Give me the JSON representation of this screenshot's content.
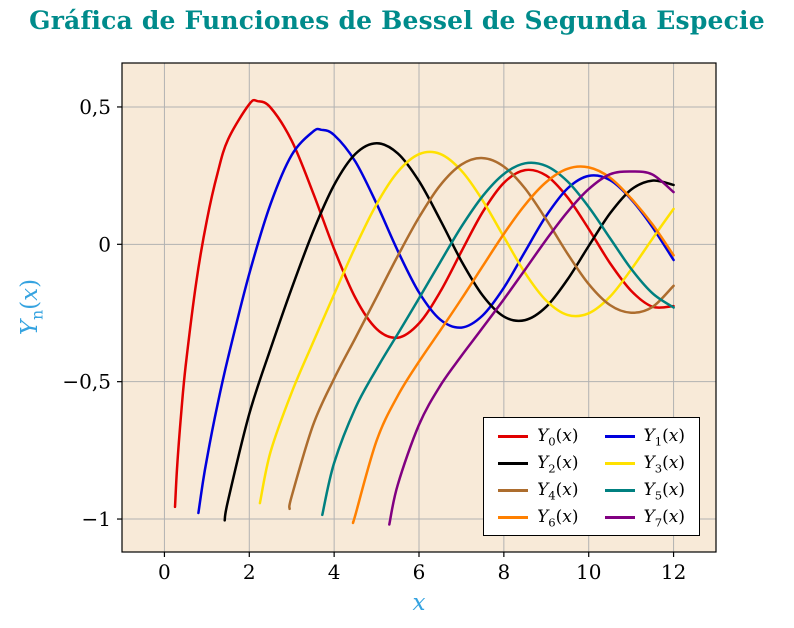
{
  "style": {
    "title_color": "#008b8b",
    "axis_label_color": "#35a3e0",
    "plot_bg": "#f8ead8",
    "grid_color": "#b2b2b2",
    "frame_color": "#000000",
    "tick_label_color": "#000000"
  },
  "chart_data": {
    "type": "line",
    "title": "Gráfica de Funciones de Bessel de Segunda Especie",
    "xlabel": "x",
    "ylabel": "Y_n(x)",
    "ylabel_parts": {
      "base": "Y",
      "sub": "n",
      "open": "(",
      "var": "x",
      "close": ")"
    },
    "xlim": [
      -1.0,
      13.0
    ],
    "ylim": [
      -1.12,
      0.66
    ],
    "xticks": {
      "values": [
        0,
        2,
        4,
        6,
        8,
        10,
        12
      ],
      "labels": [
        "0",
        "2",
        "4",
        "6",
        "8",
        "10",
        "12"
      ]
    },
    "yticks": {
      "values": [
        -1,
        -0.5,
        0,
        0.5
      ],
      "labels": [
        "−1",
        "−0,5",
        "0",
        "0,5"
      ]
    },
    "grid": "on",
    "legend_position": "bottom-right",
    "series": [
      {
        "id": "Y0",
        "name": "Y0(x)",
        "label": {
          "base": "Y",
          "sub": "0",
          "open": "(",
          "var": "x",
          "close": ")"
        },
        "color": "#e10000",
        "points": [
          [
            0.25,
            -0.956
          ],
          [
            0.3,
            -0.807
          ],
          [
            0.4,
            -0.606
          ],
          [
            0.5,
            -0.444
          ],
          [
            0.75,
            -0.137
          ],
          [
            1,
            0.088
          ],
          [
            1.25,
            0.258
          ],
          [
            1.5,
            0.382
          ],
          [
            2,
            0.51
          ],
          [
            2.2,
            0.521
          ],
          [
            2.5,
            0.498
          ],
          [
            3,
            0.377
          ],
          [
            3.5,
            0.189
          ],
          [
            4,
            -0.017
          ],
          [
            4.5,
            -0.195
          ],
          [
            5,
            -0.308
          ],
          [
            5.5,
            -0.34
          ],
          [
            6,
            -0.288
          ],
          [
            6.5,
            -0.173
          ],
          [
            7,
            -0.026
          ],
          [
            7.5,
            0.117
          ],
          [
            8,
            0.224
          ],
          [
            8.5,
            0.27
          ],
          [
            9,
            0.25
          ],
          [
            9.5,
            0.171
          ],
          [
            10,
            0.056
          ],
          [
            10.5,
            -0.068
          ],
          [
            11,
            -0.169
          ],
          [
            11.5,
            -0.227
          ],
          [
            12,
            -0.225
          ]
        ]
      },
      {
        "id": "Y1",
        "name": "Y1(x)",
        "label": {
          "base": "Y",
          "sub": "1",
          "open": "(",
          "var": "x",
          "close": ")"
        },
        "color": "#0000dd",
        "points": [
          [
            0.8,
            -0.978
          ],
          [
            0.9,
            -0.873
          ],
          [
            1,
            -0.781
          ],
          [
            1.25,
            -0.584
          ],
          [
            1.5,
            -0.412
          ],
          [
            2,
            -0.107
          ],
          [
            2.5,
            0.146
          ],
          [
            3,
            0.325
          ],
          [
            3.5,
            0.41
          ],
          [
            3.7,
            0.417
          ],
          [
            4,
            0.398
          ],
          [
            4.5,
            0.301
          ],
          [
            5,
            0.148
          ],
          [
            5.5,
            -0.024
          ],
          [
            6,
            -0.175
          ],
          [
            6.5,
            -0.274
          ],
          [
            7,
            -0.303
          ],
          [
            7.5,
            -0.259
          ],
          [
            8,
            -0.158
          ],
          [
            8.5,
            -0.026
          ],
          [
            9,
            0.104
          ],
          [
            9.5,
            0.203
          ],
          [
            10,
            0.249
          ],
          [
            10.5,
            0.234
          ],
          [
            11,
            0.164
          ],
          [
            11.5,
            0.063
          ],
          [
            12,
            -0.057
          ]
        ]
      },
      {
        "id": "Y2",
        "name": "Y2(x)",
        "label": {
          "base": "Y",
          "sub": "2",
          "open": "(",
          "var": "x",
          "close": ")"
        },
        "color": "#000000",
        "points": [
          [
            1.42,
            -1.005
          ],
          [
            1.5,
            -0.932
          ],
          [
            2,
            -0.617
          ],
          [
            2.5,
            -0.381
          ],
          [
            3,
            -0.16
          ],
          [
            3.5,
            0.045
          ],
          [
            4,
            0.216
          ],
          [
            4.5,
            0.329
          ],
          [
            5,
            0.368
          ],
          [
            5.5,
            0.331
          ],
          [
            6,
            0.23
          ],
          [
            6.5,
            0.089
          ],
          [
            7,
            -0.061
          ],
          [
            7.5,
            -0.186
          ],
          [
            8,
            -0.263
          ],
          [
            8.5,
            -0.276
          ],
          [
            9,
            -0.227
          ],
          [
            9.5,
            -0.128
          ],
          [
            10,
            -0.006
          ],
          [
            10.5,
            0.112
          ],
          [
            11,
            0.199
          ],
          [
            11.5,
            0.232
          ],
          [
            12,
            0.216
          ]
        ]
      },
      {
        "id": "Y3",
        "name": "Y3(x)",
        "label": {
          "base": "Y",
          "sub": "3",
          "open": "(",
          "var": "x",
          "close": ")"
        },
        "color": "#ffe100",
        "points": [
          [
            2.25,
            -0.942
          ],
          [
            2.5,
            -0.756
          ],
          [
            3,
            -0.539
          ],
          [
            3.5,
            -0.358
          ],
          [
            4,
            -0.182
          ],
          [
            4.5,
            -0.009
          ],
          [
            5,
            0.146
          ],
          [
            5.5,
            0.264
          ],
          [
            6,
            0.328
          ],
          [
            6.5,
            0.329
          ],
          [
            7,
            0.268
          ],
          [
            7.5,
            0.16
          ],
          [
            8,
            0.027
          ],
          [
            8.5,
            -0.104
          ],
          [
            9,
            -0.205
          ],
          [
            9.5,
            -0.257
          ],
          [
            10,
            -0.251
          ],
          [
            10.5,
            -0.191
          ],
          [
            11,
            -0.092
          ],
          [
            11.5,
            0.02
          ],
          [
            12,
            0.129
          ]
        ]
      },
      {
        "id": "Y4",
        "name": "Y4(x)",
        "label": {
          "base": "Y",
          "sub": "4",
          "open": "(",
          "var": "x",
          "close": ")"
        },
        "color": "#ad6d2e",
        "points": [
          [
            2.95,
            -0.963
          ],
          [
            3,
            -0.917
          ],
          [
            3.5,
            -0.66
          ],
          [
            4,
            -0.489
          ],
          [
            4.5,
            -0.341
          ],
          [
            5,
            -0.192
          ],
          [
            5.5,
            -0.042
          ],
          [
            6,
            0.098
          ],
          [
            6.5,
            0.215
          ],
          [
            7,
            0.29
          ],
          [
            7.5,
            0.314
          ],
          [
            8,
            0.283
          ],
          [
            8.5,
            0.203
          ],
          [
            9,
            0.09
          ],
          [
            9.5,
            -0.034
          ],
          [
            10,
            -0.145
          ],
          [
            10.5,
            -0.221
          ],
          [
            11,
            -0.249
          ],
          [
            11.5,
            -0.228
          ],
          [
            12,
            -0.151
          ]
        ]
      },
      {
        "id": "Y5",
        "name": "Y5(x)",
        "label": {
          "base": "Y",
          "sub": "5",
          "open": "(",
          "var": "x",
          "close": ")"
        },
        "color": "#008080",
        "points": [
          [
            3.72,
            -0.985
          ],
          [
            4,
            -0.796
          ],
          [
            4.5,
            -0.596
          ],
          [
            5,
            -0.454
          ],
          [
            5.5,
            -0.326
          ],
          [
            6,
            -0.197
          ],
          [
            6.5,
            -0.065
          ],
          [
            7,
            0.064
          ],
          [
            7.5,
            0.175
          ],
          [
            8,
            0.256
          ],
          [
            8.5,
            0.295
          ],
          [
            9,
            0.285
          ],
          [
            9.5,
            0.229
          ],
          [
            10,
            0.136
          ],
          [
            10.5,
            0.023
          ],
          [
            11,
            -0.089
          ],
          [
            11.5,
            -0.178
          ],
          [
            12,
            -0.23
          ]
        ]
      },
      {
        "id": "Y6",
        "name": "Y6(x)",
        "label": {
          "base": "Y",
          "sub": "6",
          "open": "(",
          "var": "x",
          "close": ")"
        },
        "color": "#ff8000",
        "points": [
          [
            4.45,
            -1.01
          ],
          [
            4.5,
            -0.985
          ],
          [
            5,
            -0.715
          ],
          [
            5.5,
            -0.551
          ],
          [
            6,
            -0.427
          ],
          [
            6.5,
            -0.314
          ],
          [
            7,
            -0.199
          ],
          [
            7.5,
            -0.08
          ],
          [
            8,
            0.038
          ],
          [
            8.5,
            0.144
          ],
          [
            9,
            0.227
          ],
          [
            9.5,
            0.275
          ],
          [
            10,
            0.28
          ],
          [
            10.5,
            0.243
          ],
          [
            11,
            0.167
          ],
          [
            11.5,
            0.073
          ],
          [
            12,
            -0.04
          ]
        ]
      },
      {
        "id": "Y7",
        "name": "Y7(x)",
        "label": {
          "base": "Y",
          "sub": "7",
          "open": "(",
          "var": "x",
          "close": ")"
        },
        "color": "#810081",
        "points": [
          [
            5.3,
            -1.02
          ],
          [
            5.5,
            -0.875
          ],
          [
            6,
            -0.657
          ],
          [
            6.5,
            -0.515
          ],
          [
            7,
            -0.406
          ],
          [
            7.5,
            -0.304
          ],
          [
            8,
            -0.2
          ],
          [
            8.5,
            -0.092
          ],
          [
            9,
            0.017
          ],
          [
            9.5,
            0.118
          ],
          [
            10,
            0.201
          ],
          [
            10.5,
            0.255
          ],
          [
            11,
            0.265
          ],
          [
            11.5,
            0.254
          ],
          [
            12,
            0.19
          ]
        ]
      }
    ]
  }
}
